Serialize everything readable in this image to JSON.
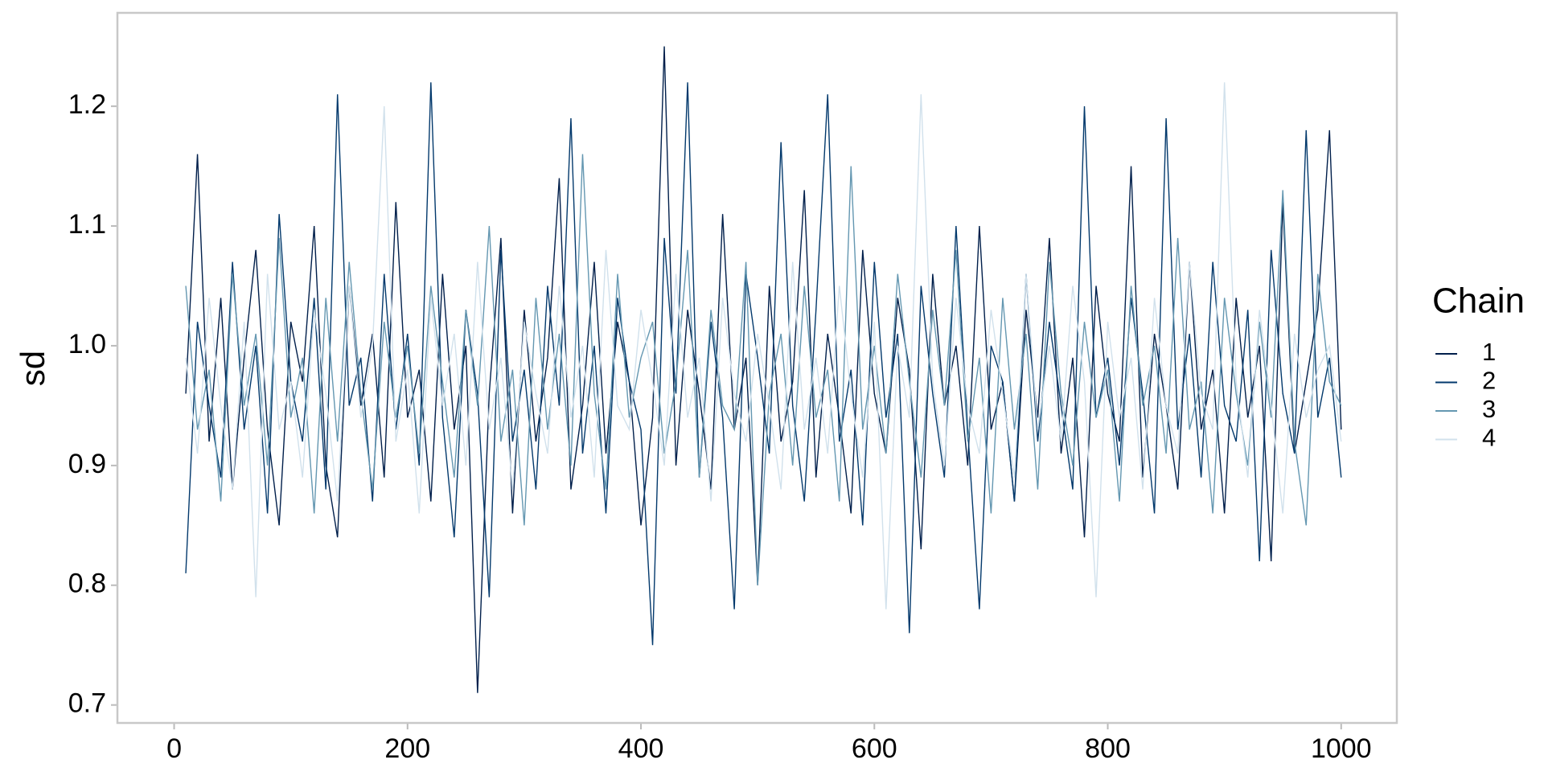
{
  "chart_data": {
    "type": "line",
    "ylabel": "sd",
    "legend_title": "Chain",
    "legend": "right",
    "grid": false,
    "x": [
      10,
      20,
      30,
      40,
      50,
      60,
      70,
      80,
      90,
      100,
      110,
      120,
      130,
      140,
      150,
      160,
      170,
      180,
      190,
      200,
      210,
      220,
      230,
      240,
      250,
      260,
      270,
      280,
      290,
      300,
      310,
      320,
      330,
      340,
      350,
      360,
      370,
      380,
      390,
      400,
      410,
      420,
      430,
      440,
      450,
      460,
      470,
      480,
      490,
      500,
      510,
      520,
      530,
      540,
      550,
      560,
      570,
      580,
      590,
      600,
      610,
      620,
      630,
      640,
      650,
      660,
      670,
      680,
      690,
      700,
      710,
      720,
      730,
      740,
      750,
      760,
      770,
      780,
      790,
      800,
      810,
      820,
      830,
      840,
      850,
      860,
      870,
      880,
      890,
      900,
      910,
      920,
      930,
      940,
      950,
      960,
      970,
      980,
      990,
      1000
    ],
    "series": [
      {
        "name": "1",
        "color": "#011f4b",
        "values": [
          0.96,
          1.16,
          0.92,
          1.04,
          0.88,
          0.99,
          1.08,
          0.93,
          0.85,
          1.02,
          0.97,
          1.1,
          0.9,
          0.84,
          1.05,
          0.95,
          1.01,
          0.89,
          1.12,
          0.94,
          0.98,
          0.87,
          1.06,
          0.93,
          1.0,
          0.71,
          0.96,
          1.09,
          0.86,
          1.03,
          0.92,
          0.99,
          1.14,
          0.88,
          0.95,
          1.07,
          0.91,
          1.02,
          0.97,
          0.85,
          0.94,
          1.25,
          0.9,
          1.03,
          0.96,
          0.88,
          1.11,
          0.93,
          0.99,
          0.8,
          1.05,
          0.92,
          0.97,
          1.13,
          0.89,
          1.01,
          0.94,
          0.86,
          1.08,
          0.96,
          0.91,
          1.04,
          0.98,
          0.83,
          1.06,
          0.95,
          1.0,
          0.9,
          1.1,
          0.93,
          0.97,
          0.87,
          1.03,
          0.94,
          1.09,
          0.91,
          0.99,
          0.84,
          1.05,
          0.96,
          0.92,
          1.15,
          0.89,
          1.01,
          0.95,
          0.88,
          1.07,
          0.93,
          0.98,
          0.86,
          1.04,
          0.94,
          1.0,
          0.82,
          1.12,
          0.91,
          0.97,
          1.03,
          1.18,
          0.93
        ]
      },
      {
        "name": "2",
        "color": "#03396c",
        "values": [
          0.81,
          1.02,
          0.95,
          0.89,
          1.07,
          0.93,
          1.0,
          0.86,
          1.11,
          0.97,
          0.92,
          1.04,
          0.88,
          1.21,
          0.95,
          0.99,
          0.87,
          1.06,
          0.93,
          1.01,
          0.9,
          1.22,
          0.94,
          0.84,
          1.03,
          0.96,
          0.79,
          1.08,
          0.92,
          0.98,
          0.88,
          1.05,
          0.95,
          1.19,
          0.91,
          1.0,
          0.86,
          1.04,
          0.97,
          0.93,
          0.75,
          1.09,
          0.96,
          1.22,
          0.89,
          1.02,
          0.94,
          0.78,
          1.06,
          0.99,
          0.91,
          1.17,
          0.95,
          0.87,
          1.03,
          1.21,
          0.92,
          0.98,
          0.85,
          1.07,
          0.94,
          1.01,
          0.76,
          1.05,
          0.96,
          0.89,
          1.1,
          0.93,
          0.78,
          1.0,
          0.97,
          0.87,
          1.06,
          0.92,
          1.02,
          0.95,
          0.88,
          1.2,
          0.94,
          0.99,
          0.9,
          1.04,
          0.96,
          0.86,
          1.19,
          0.93,
          1.01,
          0.89,
          1.07,
          0.95,
          0.92,
          1.03,
          0.82,
          1.08,
          0.96,
          0.91,
          1.18,
          0.94,
          0.99,
          0.89
        ]
      },
      {
        "name": "3",
        "color": "#6497b1",
        "values": [
          1.05,
          0.93,
          0.98,
          0.87,
          1.06,
          0.95,
          1.01,
          0.9,
          1.09,
          0.94,
          0.99,
          0.86,
          1.04,
          0.92,
          1.07,
          0.96,
          0.88,
          1.02,
          0.94,
          1.0,
          0.91,
          1.05,
          0.97,
          0.89,
          1.03,
          0.95,
          1.1,
          0.92,
          0.98,
          0.85,
          1.04,
          0.93,
          1.01,
          0.9,
          1.16,
          0.96,
          0.88,
          1.06,
          0.94,
          0.99,
          1.02,
          0.91,
          0.97,
          1.08,
          0.89,
          1.03,
          0.95,
          0.93,
          1.07,
          0.8,
          0.96,
          1.01,
          0.9,
          1.05,
          0.94,
          0.98,
          0.87,
          1.15,
          0.93,
          1.0,
          0.91,
          1.06,
          0.97,
          0.89,
          1.03,
          0.95,
          1.08,
          0.92,
          0.99,
          0.86,
          1.04,
          0.93,
          1.01,
          0.88,
          1.07,
          0.96,
          0.9,
          1.02,
          0.94,
          0.98,
          0.87,
          1.05,
          0.95,
          1.0,
          0.91,
          1.09,
          0.93,
          0.97,
          0.86,
          1.04,
          0.96,
          0.9,
          1.02,
          0.94,
          1.13,
          0.92,
          0.85,
          1.06,
          0.97,
          0.95
        ]
      },
      {
        "name": "4",
        "color": "#d1e1ec",
        "values": [
          0.99,
          0.91,
          1.04,
          0.95,
          0.88,
          1.02,
          0.79,
          1.06,
          0.93,
          0.97,
          0.89,
          1.03,
          0.96,
          0.87,
          1.05,
          0.94,
          1.0,
          1.2,
          0.92,
          0.98,
          0.86,
          1.04,
          0.95,
          1.01,
          0.9,
          1.07,
          0.93,
          0.99,
          0.88,
          1.02,
          0.96,
          0.91,
          1.05,
          0.94,
          1.0,
          0.89,
          1.08,
          0.95,
          0.93,
          1.03,
          0.97,
          0.9,
          1.06,
          0.94,
          0.99,
          0.87,
          1.04,
          0.96,
          0.92,
          1.01,
          0.95,
          0.88,
          1.07,
          0.93,
          0.99,
          0.91,
          1.05,
          0.96,
          0.89,
          1.02,
          0.78,
          1.0,
          0.94,
          1.21,
          0.97,
          0.9,
          1.04,
          0.95,
          0.91,
          1.03,
          0.96,
          0.89,
          1.06,
          0.93,
          1.0,
          0.92,
          1.05,
          0.97,
          0.79,
          1.02,
          0.94,
          0.99,
          0.88,
          1.04,
          0.95,
          0.91,
          1.07,
          0.96,
          0.93,
          1.22,
          0.97,
          0.89,
          1.03,
          0.95,
          0.86,
          1.01,
          0.94,
          0.98,
          1.0,
          0.92
        ]
      }
    ],
    "xlim": [
      -48.6,
      1047.7
    ],
    "xticks": [
      0,
      200,
      400,
      600,
      800,
      1000
    ],
    "ylim": [
      0.685,
      1.278
    ],
    "yticks": [
      {
        "value": 0.7,
        "label": "0.7"
      },
      {
        "value": 0.8,
        "label": "0.8"
      },
      {
        "value": 0.9,
        "label": "0.9"
      },
      {
        "value": 1.0,
        "label": "1.0"
      },
      {
        "value": 1.1,
        "label": "1.1"
      },
      {
        "value": 1.2,
        "label": "1.2"
      }
    ]
  }
}
